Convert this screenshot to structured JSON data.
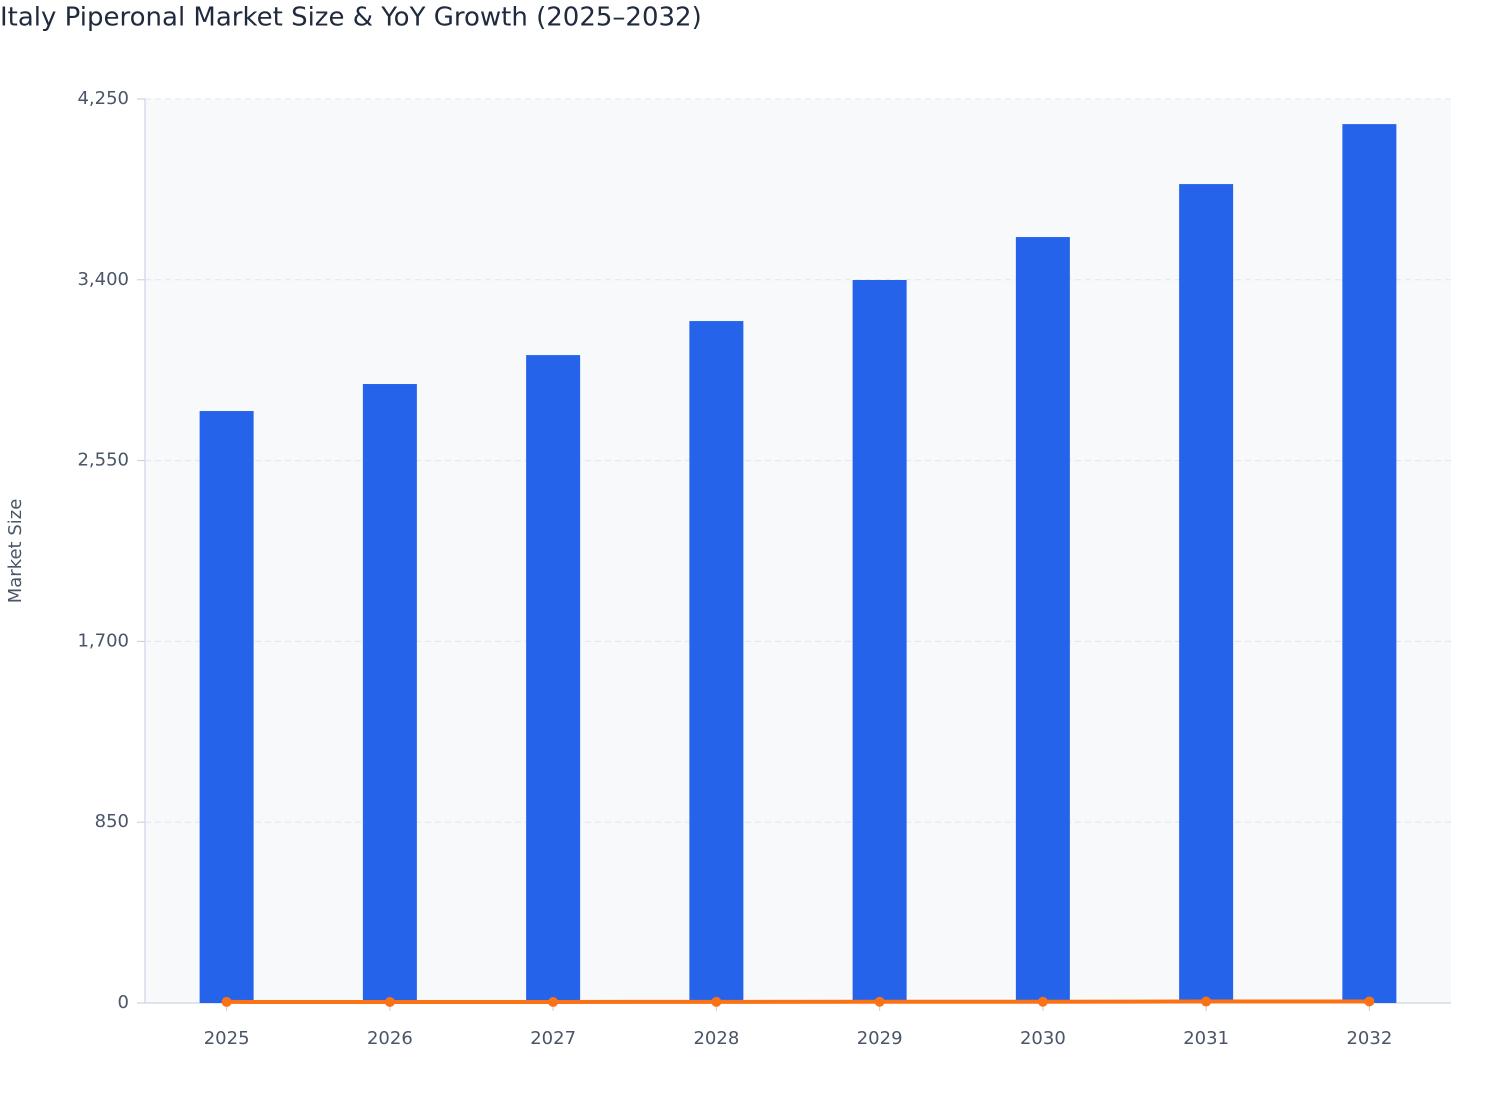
{
  "chart_data": {
    "type": "bar+line",
    "title": "Italy Piperonal Market Size & YoY Growth (2025–2032)",
    "y_label": "Market Size",
    "categories": [
      "2025",
      "2026",
      "2027",
      "2028",
      "2029",
      "2030",
      "2031",
      "2032"
    ],
    "series": [
      {
        "type": "bar",
        "color": "#2563eb",
        "values": [
          2783,
          2910,
          3046,
          3206,
          3399,
          3601,
          3850,
          4132
        ]
      },
      {
        "type": "line",
        "color": "#f97316",
        "values": [
          5,
          4.6,
          4.7,
          5.3,
          6.0,
          5.9,
          6.9,
          7.3
        ]
      }
    ],
    "ylim": [
      0,
      4250
    ],
    "yticks": [
      0,
      850,
      {
        "value": 1700,
        "label": "1,700"
      },
      {
        "value": 2550,
        "label": "2,550"
      },
      {
        "value": 3400,
        "label": "3,400"
      },
      {
        "value": 4250,
        "label": "4,250"
      }
    ],
    "grid": true
  }
}
